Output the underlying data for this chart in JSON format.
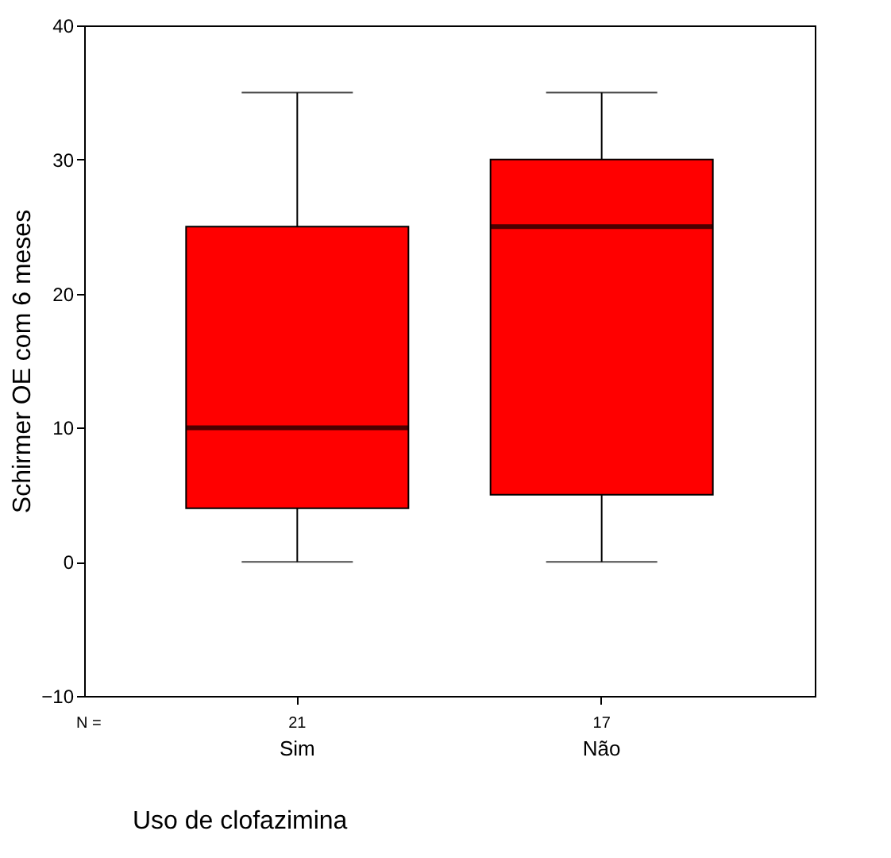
{
  "chart_data": {
    "type": "box",
    "xlabel": "Uso de clofazimina",
    "ylabel": "Schirmer OE com 6 meses",
    "categories": [
      "Sim",
      "Não"
    ],
    "boxes": [
      {
        "low": 0,
        "q1": 4,
        "median": 10,
        "q3": 25,
        "high": 35
      },
      {
        "low": 0,
        "q1": 5,
        "median": 25,
        "q3": 30,
        "high": 35
      }
    ],
    "color": "#ff0000",
    "ylim": [
      -10,
      40
    ],
    "yticks": [
      -10,
      0,
      10,
      20,
      30,
      40
    ],
    "grid": false,
    "annotations": [
      "N =",
      "21",
      "17"
    ]
  }
}
